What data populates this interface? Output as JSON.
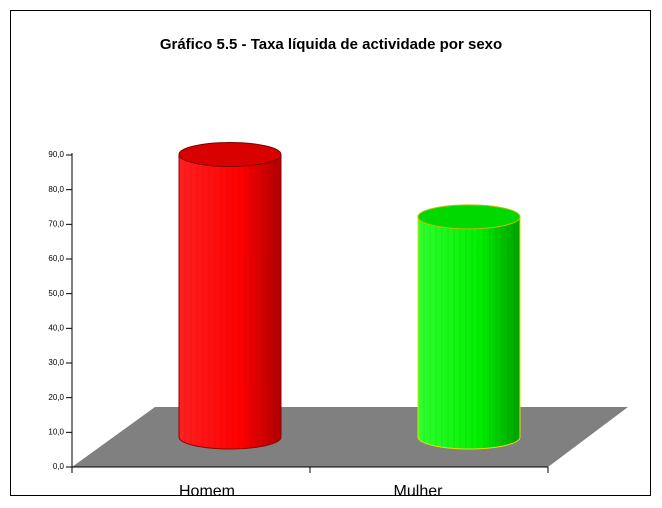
{
  "chart_data": {
    "type": "bar",
    "title": "Gráfico 5.5 - Taxa líquida de actividade por sexo",
    "categories": [
      "Homem",
      "Mulher"
    ],
    "values": [
      81.5,
      63.5
    ],
    "colors": [
      "#ff0000",
      "#00ff00"
    ],
    "ylim": [
      0,
      90
    ],
    "yticks": [
      {
        "value": 0,
        "label": "0,0"
      },
      {
        "value": 10,
        "label": "10,0"
      },
      {
        "value": 20,
        "label": "20,0"
      },
      {
        "value": 30,
        "label": "30,0"
      },
      {
        "value": 40,
        "label": "40,0"
      },
      {
        "value": 50,
        "label": "50,0"
      },
      {
        "value": 60,
        "label": "60,0"
      },
      {
        "value": 70,
        "label": "70,0"
      },
      {
        "value": 80,
        "label": "80,0"
      },
      {
        "value": 90,
        "label": "90,0"
      }
    ]
  }
}
